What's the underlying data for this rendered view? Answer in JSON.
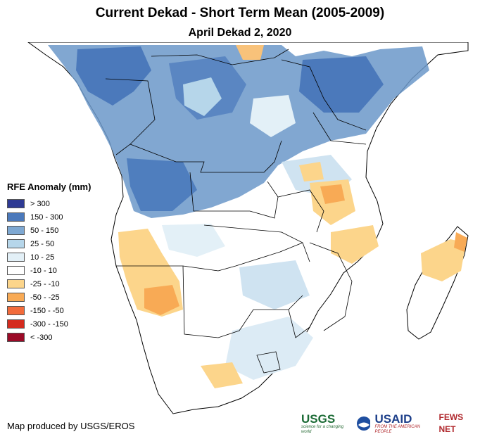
{
  "title": "Current Dekad - Short Term Mean (2005-2009)",
  "subtitle": "April Dekad 2, 2020",
  "legend": {
    "title": "RFE Anomaly (mm)",
    "items": [
      {
        "label": "> 300",
        "color": "#2e3a94"
      },
      {
        "label": "150 - 300",
        "color": "#4b79bb"
      },
      {
        "label": "50 - 150",
        "color": "#7ea8d2"
      },
      {
        "label": "25 - 50",
        "color": "#b6d6ea"
      },
      {
        "label": "10 - 25",
        "color": "#e3f0f7"
      },
      {
        "label": "-10 - 10",
        "color": "#ffffff"
      },
      {
        "label": "-25 - -10",
        "color": "#fcd58b"
      },
      {
        "label": "-50 - -25",
        "color": "#f8aa55"
      },
      {
        "label": "-150 - -50",
        "color": "#f26b3b"
      },
      {
        "label": "-300 - -150",
        "color": "#d42b1e"
      },
      {
        "label": "< -300",
        "color": "#9b0a27"
      }
    ]
  },
  "credit": "Map produced by USGS/EROS",
  "logos": {
    "usgs": "USGS",
    "usgs_tagline": "science for a changing world",
    "usaid": "USAID",
    "usaid_tagline": "FROM THE AMERICAN PEOPLE",
    "fewsnet": "FEWS NET"
  }
}
